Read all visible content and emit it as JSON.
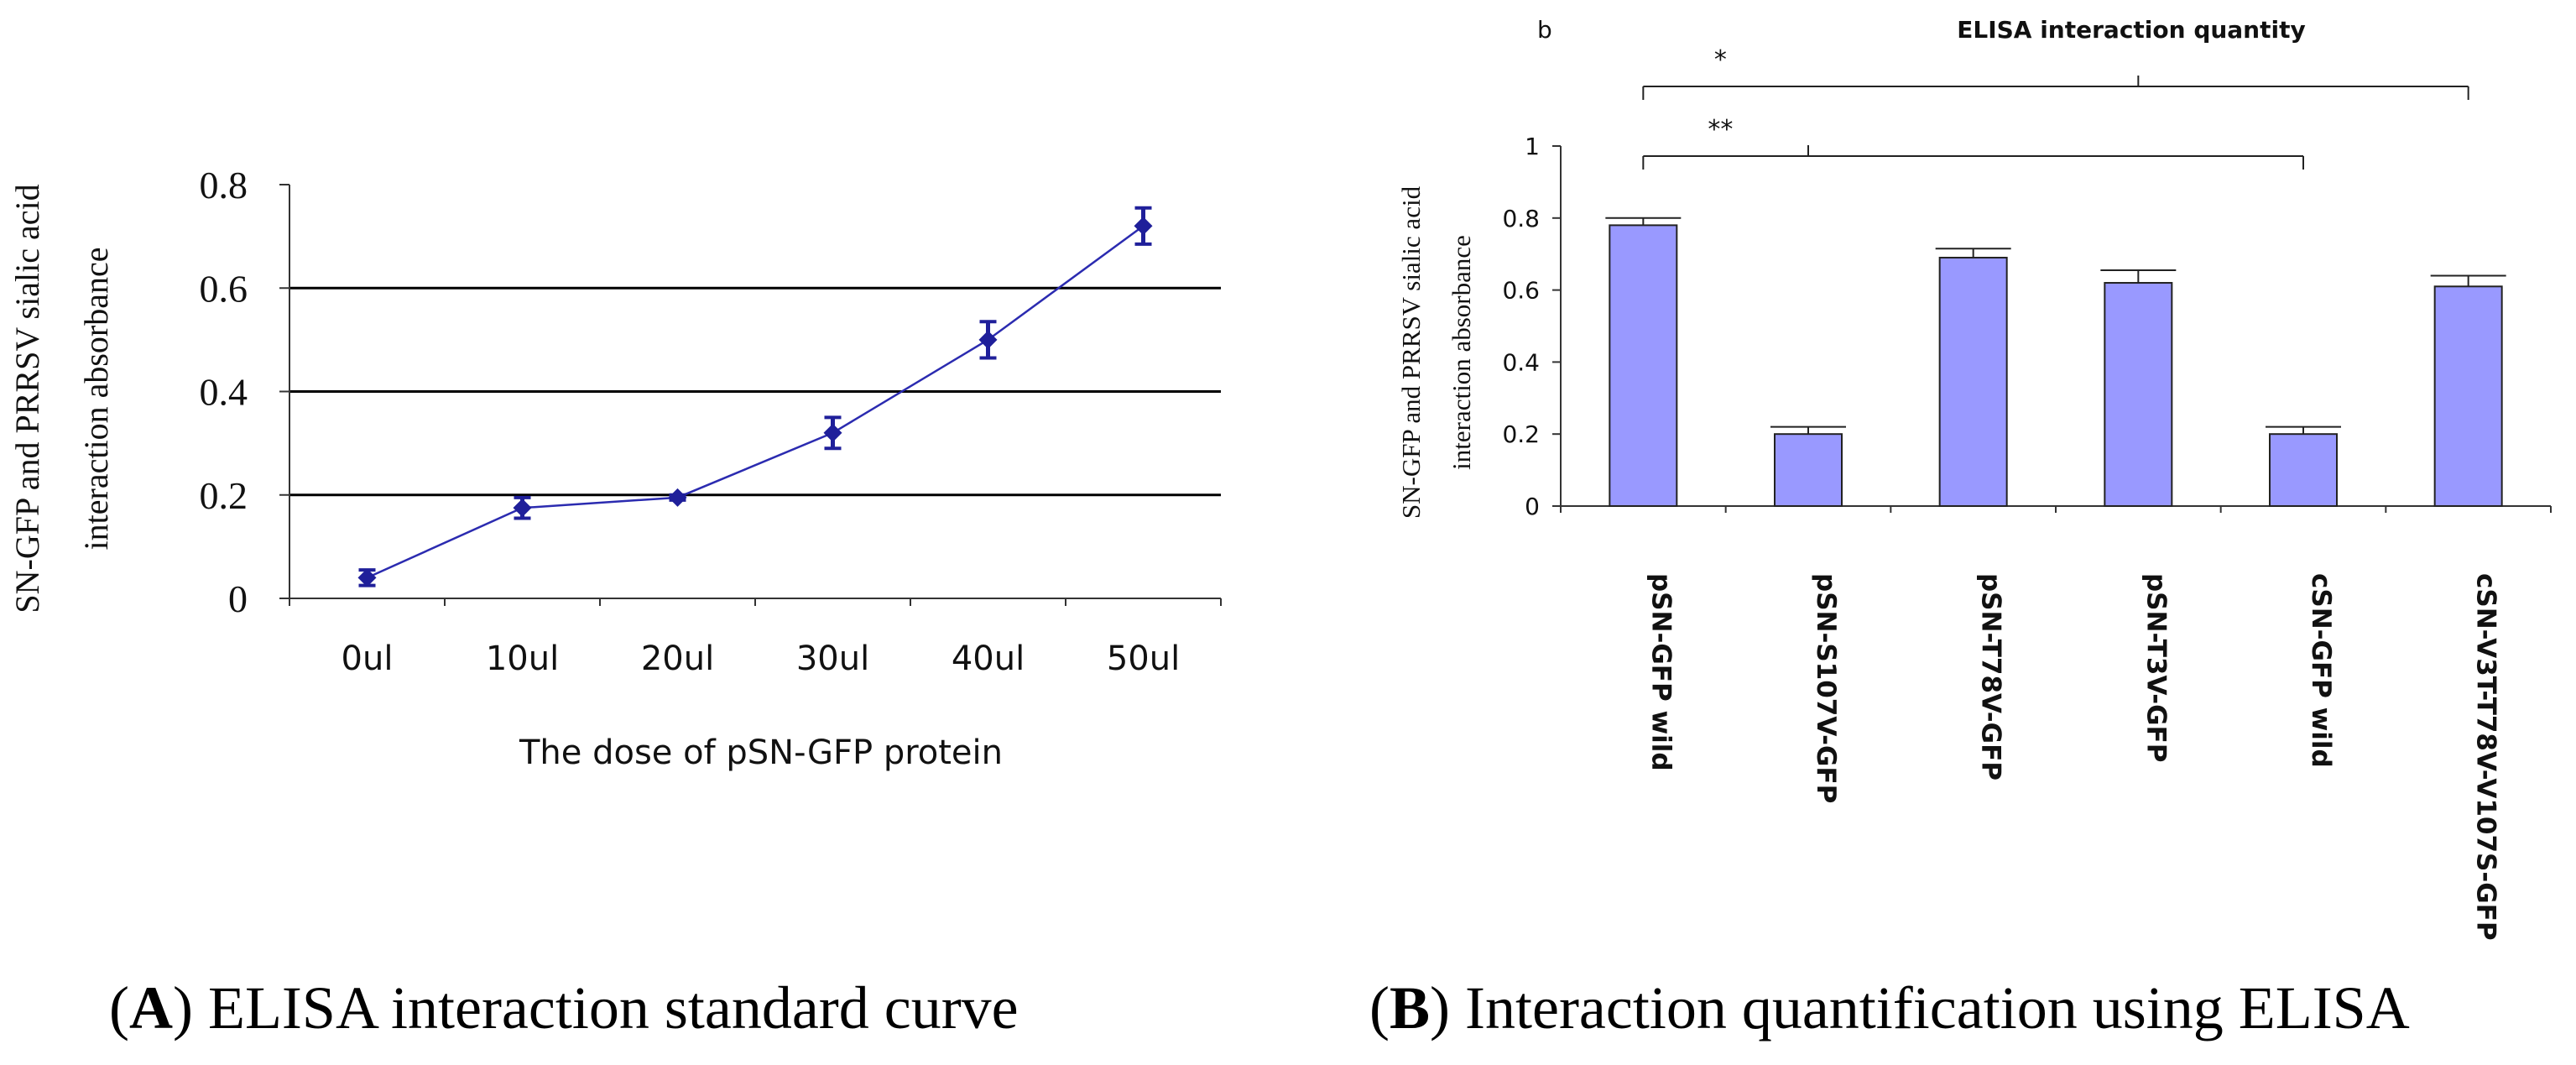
{
  "chart_data": [
    {
      "type": "line",
      "title": "",
      "xlabel": "The dose of pSN-GFP protein",
      "ylabel_lines": [
        "SN-GFP and PRRSV sialic acid",
        "interaction absorbance"
      ],
      "categories": [
        "0ul",
        "10ul",
        "20ul",
        "30ul",
        "40ul",
        "50ul"
      ],
      "values": [
        0.04,
        0.175,
        0.195,
        0.32,
        0.5,
        0.72
      ],
      "errors": [
        0.015,
        0.02,
        0.005,
        0.03,
        0.035,
        0.035
      ],
      "ylim": [
        0,
        0.8
      ],
      "yticks": [
        "0",
        "0.2",
        "0.4",
        "0.6",
        "0.8"
      ],
      "gridlines": [
        0.2,
        0.4,
        0.6
      ],
      "series_color": "#1f1f9a",
      "caption_letter": "A",
      "caption_text": "ELISA interaction standard curve"
    },
    {
      "type": "bar",
      "panel_label": "b",
      "title": "ELISA interaction quantity",
      "xlabel": "",
      "ylabel_lines": [
        "SN-GFP and PRRSV sialic acid",
        "interaction absorbance"
      ],
      "categories": [
        "pSN-GFP wild",
        "pSN-S107V-GFP",
        "pSN-T78V-GFP",
        "pSN-T3V-GFP",
        "cSN-GFP wild",
        "cSN-V3T-T78V-V107S-GFP"
      ],
      "values": [
        0.78,
        0.2,
        0.69,
        0.62,
        0.2,
        0.61
      ],
      "errors": [
        0.02,
        0.02,
        0.025,
        0.035,
        0.02,
        0.03
      ],
      "ylim": [
        0,
        1
      ],
      "yticks": [
        "0",
        "0.2",
        "0.4",
        "0.6",
        "0.8",
        "1"
      ],
      "bar_color": "#9999ff",
      "significance": [
        {
          "label": "*",
          "targets": [
            0,
            3,
            5
          ]
        },
        {
          "label": "**",
          "targets": [
            0,
            1,
            4
          ]
        }
      ],
      "caption_letter": "B",
      "caption_text": "Interaction quantification using ELISA"
    }
  ]
}
